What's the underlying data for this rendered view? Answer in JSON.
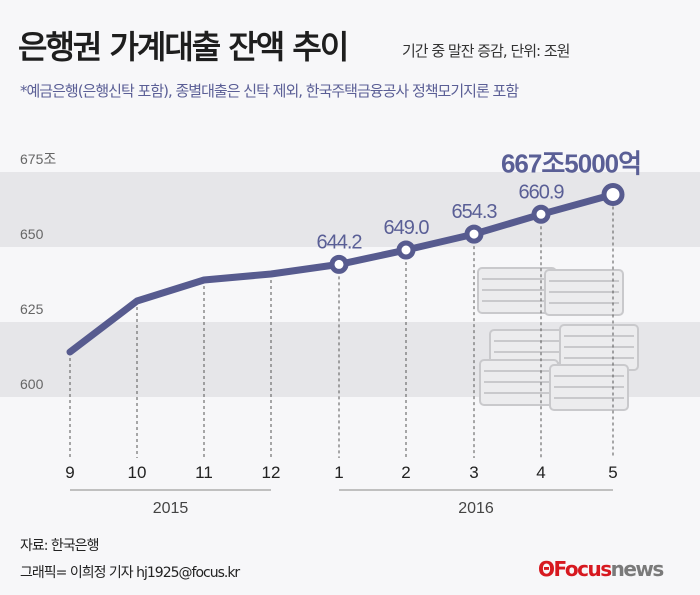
{
  "title": "은행권 가계대출 잔액 추이",
  "subtitle": "기간 중 말잔 증감, 단위: 조원",
  "note": "*예금은행(은행신탁 포함), 종별대출은 신탁 제외, 한국주택금융공사 정책모기지론 포함",
  "source": "자료: 한국은행",
  "credit": "그래픽= 이희정 기자 hj1925@focus.kr",
  "logo": {
    "brand1": "Focus",
    "brand2": "news"
  },
  "colors": {
    "line": "#575b8f",
    "label": "#5a5f96",
    "band": "#e6e6e9",
    "logo_red": "#d71920",
    "logo_gray": "#7a7a7a"
  },
  "chart_data": {
    "type": "line",
    "categories": [
      "9",
      "10",
      "11",
      "12",
      "1",
      "2",
      "3",
      "4",
      "5"
    ],
    "year_groups": [
      {
        "label": "2015",
        "from": 0,
        "to": 3
      },
      {
        "label": "2016",
        "from": 4,
        "to": 8
      }
    ],
    "values": [
      615,
      632,
      639,
      641,
      644.2,
      649.0,
      654.3,
      660.9,
      667.5
    ],
    "data_labels": [
      "",
      "",
      "",
      "",
      "644.2",
      "649.0",
      "654.3",
      "660.9",
      "667조5000억"
    ],
    "y_ticks": [
      "600",
      "625",
      "650",
      "675조"
    ],
    "y_tick_values": [
      600,
      625,
      650,
      675
    ],
    "ylim": [
      600,
      675
    ],
    "grid": "alternating bands",
    "legend": "none"
  }
}
